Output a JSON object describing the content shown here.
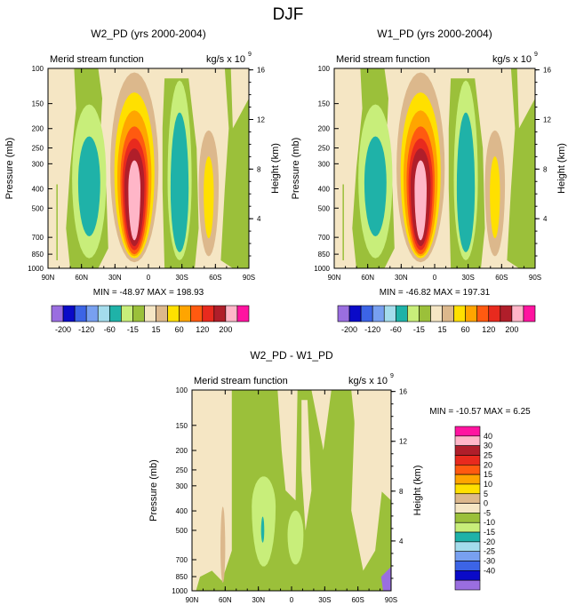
{
  "page_title": "DJF",
  "colors": {
    "bg": "#f5e6c4",
    "green": "#9bc03a",
    "lightgreen": "#c8ee7a",
    "teal": "#1fb2a8",
    "tan": "#dcb88c",
    "yellow": "#ffe000",
    "orange": "#ffa500",
    "redorange": "#ff5a10",
    "red": "#e82a1e",
    "darkred": "#b01e2a",
    "pink": "#ffb6c8",
    "lightblue": "#a4dcec",
    "blue": "#5a8cee"
  },
  "chart_data": [
    {
      "type": "heatmap",
      "id": "w2",
      "title": "W2_PD (yrs 2000-2004)",
      "subtitle_left": "Merid stream function",
      "units": "kg/s x 10",
      "units_exp": "9",
      "ylabel": "Pressure (mb)",
      "ylabel_right": "Height (km)",
      "x_ticks": [
        "90N",
        "60N",
        "30N",
        "0",
        "30S",
        "60S",
        "90S"
      ],
      "y_ticks": [
        "100",
        "150",
        "200",
        "250",
        "300",
        "400",
        "500",
        "700",
        "850",
        "1000"
      ],
      "right_ticks": [
        "16",
        "12",
        "8",
        "4"
      ],
      "ylim": [
        100,
        1000
      ],
      "stats": "MIN = -48.97   MAX = 198.93"
    },
    {
      "type": "heatmap",
      "id": "w1",
      "title": "W1_PD (yrs 2000-2004)",
      "subtitle_left": "Merid stream function",
      "units": "kg/s x 10",
      "units_exp": "9",
      "ylabel": "Pressure (mb)",
      "ylabel_right": "Height (km)",
      "x_ticks": [
        "90N",
        "60N",
        "30N",
        "0",
        "30S",
        "60S",
        "90S"
      ],
      "y_ticks": [
        "100",
        "150",
        "200",
        "250",
        "300",
        "400",
        "500",
        "700",
        "850",
        "1000"
      ],
      "right_ticks": [
        "16",
        "12",
        "8",
        "4"
      ],
      "ylim": [
        100,
        1000
      ],
      "stats": "MIN = -46.82   MAX = 197.31"
    },
    {
      "type": "heatmap",
      "id": "diff",
      "title": "W2_PD - W1_PD",
      "subtitle_left": "Merid stream function",
      "units": "kg/s x 10",
      "units_exp": "9",
      "ylabel": "Pressure (mb)",
      "ylabel_right": "Height (km)",
      "x_ticks": [
        "90N",
        "60N",
        "30N",
        "0",
        "30S",
        "60S",
        "90S"
      ],
      "y_ticks": [
        "100",
        "150",
        "200",
        "250",
        "300",
        "400",
        "500",
        "700",
        "850",
        "1000"
      ],
      "right_ticks": [
        "16",
        "12",
        "8",
        "4"
      ],
      "ylim": [
        100,
        1000
      ],
      "stats": "MIN = -10.57   MAX =   6.25"
    }
  ],
  "colorbar_top": {
    "labels": [
      "-200",
      "-120",
      "-60",
      "-15",
      "15",
      "60",
      "120",
      "200"
    ],
    "colors": [
      "#9a6ee0",
      "#0a0ac8",
      "#3c64e6",
      "#78a0f0",
      "#a4dcec",
      "#1fb2a8",
      "#c8ee7a",
      "#9bc03a",
      "#f5e6c4",
      "#dcb88c",
      "#ffe000",
      "#ffa500",
      "#ff5a10",
      "#e82a1e",
      "#b01e2a",
      "#ffb6c8",
      "#ff14a0"
    ]
  },
  "colorbar_diff": {
    "labels": [
      "40",
      "30",
      "25",
      "20",
      "15",
      "10",
      "5",
      "0",
      "-5",
      "-10",
      "-15",
      "-20",
      "-25",
      "-30",
      "-40"
    ],
    "colors": [
      "#ff14a0",
      "#ffb6c8",
      "#b01e2a",
      "#e82a1e",
      "#ff5a10",
      "#ffa500",
      "#ffe000",
      "#dcb88c",
      "#f5e6c4",
      "#9bc03a",
      "#c8ee7a",
      "#1fb2a8",
      "#a4dcec",
      "#78a0f0",
      "#3c64e6",
      "#0a0ac8",
      "#9a6ee0"
    ]
  }
}
